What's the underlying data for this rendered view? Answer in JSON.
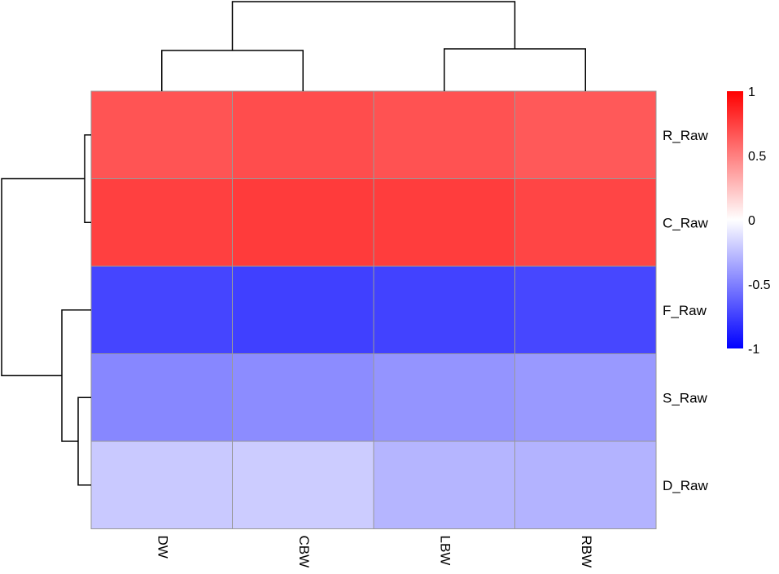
{
  "chart_data": {
    "type": "heatmap",
    "columns": [
      "DW",
      "CBW",
      "LBW",
      "RBW"
    ],
    "rows": [
      "R_Raw",
      "C_Raw",
      "F_Raw",
      "S_Raw",
      "D_Raw"
    ],
    "values": [
      [
        0.67,
        0.7,
        0.68,
        0.65
      ],
      [
        0.75,
        0.77,
        0.76,
        0.73
      ],
      [
        -0.73,
        -0.75,
        -0.74,
        -0.72
      ],
      [
        -0.47,
        -0.45,
        -0.42,
        -0.4
      ],
      [
        -0.21,
        -0.2,
        -0.29,
        -0.3
      ]
    ],
    "legend": {
      "ticks": [
        1,
        0.5,
        0,
        -0.5,
        -1
      ],
      "tick_labels": [
        "1",
        "0.5",
        "0",
        "-0.5",
        "-1"
      ],
      "range": [
        -1,
        1
      ],
      "colors": {
        "low": "#0000ff",
        "mid": "#ffffff",
        "high": "#ff0000"
      },
      "placement": "right"
    },
    "column_dendrogram": {
      "merges": [
        [
          "DW",
          "CBW"
        ],
        [
          "LBW",
          "RBW"
        ],
        [
          "DW+CBW",
          "LBW+RBW"
        ]
      ]
    },
    "row_dendrogram": {
      "merges": [
        [
          "R_Raw",
          "C_Raw"
        ],
        [
          "S_Raw",
          "D_Raw"
        ],
        [
          "F_Raw",
          "S_Raw+D_Raw"
        ],
        [
          "R_Raw+C_Raw",
          "F_Raw+S_Raw+D_Raw"
        ]
      ]
    }
  }
}
